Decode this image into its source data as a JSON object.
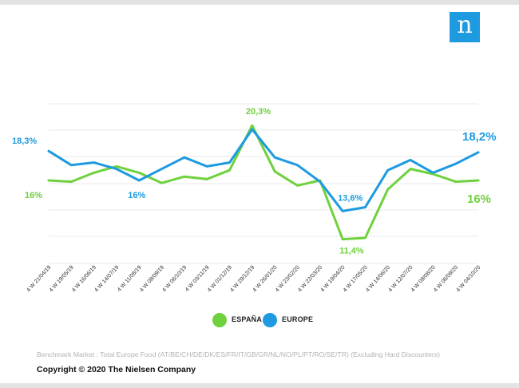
{
  "logo": {
    "glyph": "n",
    "color": "#1e9be0"
  },
  "chart_data": {
    "type": "line",
    "categories": [
      "4 W 21/04/19",
      "4 W 19/05/19",
      "4 W 16/06/19",
      "4 W 14/07/19",
      "4 W 11/08/19",
      "4 W 08/09/19",
      "4 W 06/10/19",
      "4 W 03/11/19",
      "4 W 01/12/19",
      "4 W 29/12/19",
      "4 W 26/01/20",
      "4 W 23/02/20",
      "4 W 22/03/20",
      "4 W 19/04/20",
      "4 W 17/05/20",
      "4 W 14/06/20",
      "4 W 12/07/20",
      "4 W 09/08/20",
      "4 W 06/09/20",
      "4 W 04/10/20"
    ],
    "series": [
      {
        "name": "ESPAÑA",
        "color": "#6fd13d",
        "values": [
          16.0,
          15.9,
          16.6,
          17.1,
          16.6,
          15.8,
          16.3,
          16.1,
          16.8,
          20.3,
          16.7,
          15.6,
          16.0,
          11.4,
          11.5,
          15.3,
          16.9,
          16.5,
          15.9,
          16.0
        ]
      },
      {
        "name": "EUROPE",
        "color": "#1e9be0",
        "values": [
          18.3,
          17.2,
          17.4,
          16.9,
          16.0,
          16.9,
          17.8,
          17.1,
          17.4,
          20.0,
          17.8,
          17.2,
          15.9,
          13.6,
          13.9,
          16.8,
          17.6,
          16.6,
          17.3,
          18.2
        ]
      }
    ],
    "annotations": [
      {
        "series": 0,
        "index": 0,
        "text": "16%"
      },
      {
        "series": 0,
        "index": 9,
        "text": "20,3%"
      },
      {
        "series": 0,
        "index": 13,
        "text": "11,4%"
      },
      {
        "series": 0,
        "index": 19,
        "text": "16%"
      },
      {
        "series": 1,
        "index": 0,
        "text": "18,3%"
      },
      {
        "series": 1,
        "index": 4,
        "text": "16%"
      },
      {
        "series": 1,
        "index": 13,
        "text": "13,6%"
      },
      {
        "series": 1,
        "index": 19,
        "text": "18,2%"
      }
    ],
    "ylim": [
      9.5,
      22
    ],
    "grid": true,
    "legend": "bottom-center",
    "title": "",
    "xlabel": "",
    "ylabel": ""
  },
  "legend": {
    "items": [
      {
        "label": "ESPAÑA",
        "color": "#6fd13d"
      },
      {
        "label": "EUROPE",
        "color": "#1e9be0"
      }
    ]
  },
  "footer": {
    "source": "Benchmark Market : Total Europe Food (AT/BE/CH/DE/DK/ES/FR/IT/GB/GR/NL/NO/PL/PT/RO/SE/TR) (Excluding Hard Discounters)",
    "copyright": "Copyright © 2020 The Nielsen Company"
  }
}
